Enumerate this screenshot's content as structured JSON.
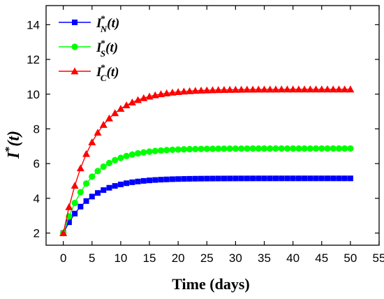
{
  "chart_data": {
    "type": "line",
    "xlabel": "Time (days)",
    "ylabel": {
      "base": "I",
      "sup": "*",
      "paren": "(t)"
    },
    "xlim": [
      -3,
      55
    ],
    "ylim": [
      1.3,
      15.1
    ],
    "xticks": [
      0,
      5,
      10,
      15,
      20,
      25,
      30,
      35,
      40,
      45,
      50,
      55
    ],
    "yticks": [
      2,
      4,
      6,
      8,
      10,
      12,
      14
    ],
    "legend_position": "top-left",
    "series": [
      {
        "name": {
          "base": "I",
          "sup": "*",
          "sub": "N",
          "paren": "(t)"
        },
        "color": "#0000ff",
        "marker": "square",
        "initial": 2.0,
        "asymptote": 5.15,
        "rate": 0.22,
        "x_start": 0,
        "x_end": 50,
        "x_step": 1
      },
      {
        "name": {
          "base": "I",
          "sup": "*",
          "sub": "S",
          "paren": "(t)"
        },
        "color": "#00ff00",
        "marker": "circle",
        "initial": 2.0,
        "asymptote": 6.87,
        "rate": 0.22,
        "x_start": 0,
        "x_end": 50,
        "x_step": 1
      },
      {
        "name": {
          "base": "I",
          "sup": "*",
          "sub": "C",
          "paren": "(t)"
        },
        "color": "#ff0000",
        "marker": "triangle",
        "initial": 2.0,
        "asymptote": 10.28,
        "rate": 0.2,
        "x_start": 0,
        "x_end": 50,
        "x_step": 1
      }
    ]
  }
}
